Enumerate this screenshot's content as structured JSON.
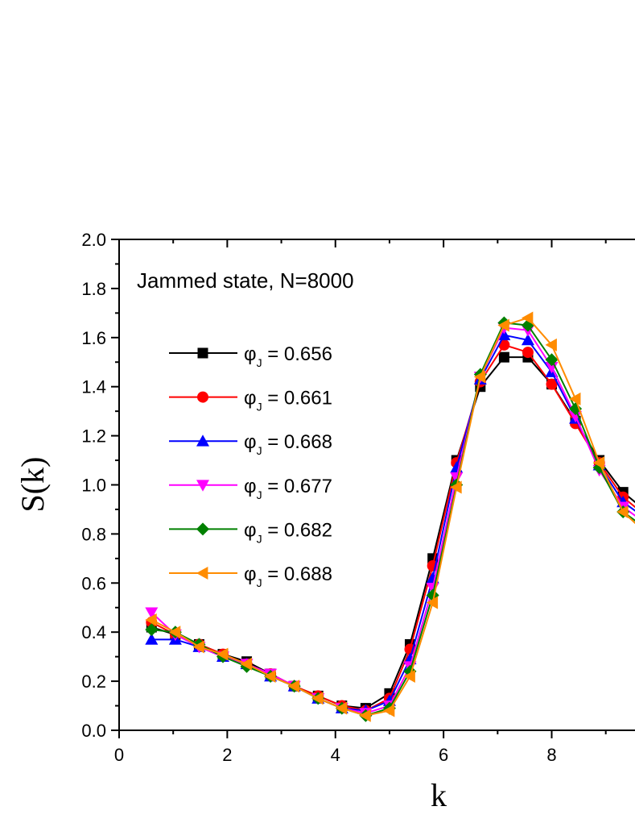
{
  "chart_data": {
    "type": "line",
    "xlabel": "k",
    "ylabel": "S(k)",
    "annotation": "Jammed state, N=8000",
    "xlim": [
      0,
      9.6
    ],
    "ylim": [
      0,
      2.0
    ],
    "x_ticks": [
      "0",
      "2",
      "4",
      "6",
      "8"
    ],
    "y_ticks": [
      "0.0",
      "0.2",
      "0.4",
      "0.6",
      "0.8",
      "1.0",
      "1.2",
      "1.4",
      "1.6",
      "1.8",
      "2.0"
    ],
    "legend_position": "left",
    "x": [
      0.6,
      1.04,
      1.48,
      1.92,
      2.36,
      2.8,
      3.24,
      3.68,
      4.12,
      4.56,
      5.0,
      5.38,
      5.8,
      6.24,
      6.68,
      7.12,
      7.56,
      8.0,
      8.44,
      8.88,
      9.32,
      9.76
    ],
    "series": [
      {
        "name": "φ",
        "sub": "J",
        "value": " = 0.656",
        "color": "#000000",
        "marker": "square",
        "values": [
          0.42,
          0.39,
          0.35,
          0.31,
          0.28,
          0.23,
          0.18,
          0.14,
          0.1,
          0.09,
          0.15,
          0.35,
          0.7,
          1.1,
          1.4,
          1.52,
          1.52,
          1.41,
          1.26,
          1.1,
          0.97,
          0.89
        ]
      },
      {
        "name": "φ",
        "sub": "J",
        "value": " = 0.661",
        "color": "#ff0000",
        "marker": "circle",
        "values": [
          0.44,
          0.39,
          0.35,
          0.31,
          0.27,
          0.23,
          0.18,
          0.14,
          0.1,
          0.08,
          0.13,
          0.33,
          0.67,
          1.09,
          1.42,
          1.57,
          1.54,
          1.41,
          1.25,
          1.09,
          0.95,
          0.87
        ]
      },
      {
        "name": "φ",
        "sub": "J",
        "value": " = 0.668",
        "color": "#0000ff",
        "marker": "triangle-up",
        "values": [
          0.37,
          0.37,
          0.34,
          0.3,
          0.27,
          0.22,
          0.18,
          0.13,
          0.09,
          0.08,
          0.12,
          0.29,
          0.62,
          1.07,
          1.43,
          1.61,
          1.59,
          1.46,
          1.27,
          1.08,
          0.93,
          0.86
        ]
      },
      {
        "name": "φ",
        "sub": "J",
        "value": " = 0.677",
        "color": "#ff00ff",
        "marker": "triangle-down",
        "values": [
          0.48,
          0.39,
          0.34,
          0.3,
          0.27,
          0.23,
          0.18,
          0.13,
          0.09,
          0.07,
          0.1,
          0.26,
          0.58,
          1.03,
          1.44,
          1.64,
          1.63,
          1.48,
          1.28,
          1.06,
          0.91,
          0.84
        ]
      },
      {
        "name": "φ",
        "sub": "J",
        "value": " = 0.682",
        "color": "#008000",
        "marker": "diamond",
        "values": [
          0.41,
          0.4,
          0.35,
          0.3,
          0.26,
          0.22,
          0.18,
          0.13,
          0.09,
          0.06,
          0.09,
          0.24,
          0.55,
          1.0,
          1.45,
          1.66,
          1.65,
          1.51,
          1.31,
          1.07,
          0.89,
          0.82
        ]
      },
      {
        "name": "φ",
        "sub": "J",
        "value": " = 0.688",
        "color": "#ff8c00",
        "marker": "triangle-left",
        "values": [
          0.45,
          0.4,
          0.34,
          0.31,
          0.27,
          0.22,
          0.18,
          0.13,
          0.09,
          0.06,
          0.08,
          0.22,
          0.52,
          0.99,
          1.44,
          1.65,
          1.68,
          1.57,
          1.35,
          1.09,
          0.89,
          0.8
        ]
      }
    ]
  }
}
